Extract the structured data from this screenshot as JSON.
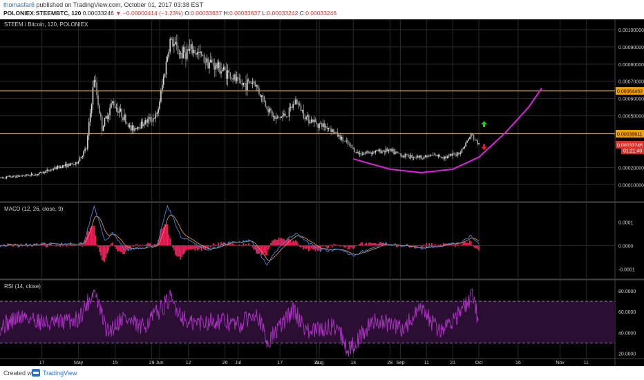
{
  "header": {
    "username": "thomasfar6",
    "published": "published on TradingView.com, October 01, 2017 03:38 EST",
    "symbol": "POLONIEX:STEEMBTC, 120",
    "last": "0.00033246",
    "change_arrow": "▼",
    "change": "−0.00000414 (−1.23%)",
    "ohlc": [
      {
        "label": "O:",
        "value": "0.00033637"
      },
      {
        "label": "H:",
        "value": "0.00033637"
      },
      {
        "label": "L:",
        "value": "0.00033242"
      },
      {
        "label": "C:",
        "value": "0.00033246"
      }
    ]
  },
  "footer": {
    "created": "Created with",
    "brand": "TradingView"
  },
  "colors": {
    "background": "#000000",
    "grid": "#2a2a2a",
    "price_line": "#f0a000",
    "curve": "#e020e0",
    "up_arrow": "#22cc22",
    "down_arrow": "#e02020",
    "candle": "#cfcfcf",
    "macd_line": "#3b82c4",
    "signal_line": "#e09050",
    "histogram": "#e8205a",
    "rsi_line": "#b030c8",
    "rsi_band": "#2a0f33"
  },
  "chart_data": [
    {
      "type": "candlestick",
      "title": "STEEM / Bitcoin, 120, POLONIEX",
      "yaxis": {
        "ylim": [
          5e-06,
          0.00106
        ],
        "ticks": [
          "0.00100000",
          "0.00090000",
          "0.00080000",
          "0.00070000",
          "0.00060000",
          "0.00050000",
          "0.00020000",
          "0.00010000"
        ]
      },
      "price_path": [
        [
          "2017-04-01",
          0.00014
        ],
        [
          "2017-04-15",
          0.00016
        ],
        [
          "2017-04-25",
          0.00021
        ],
        [
          "2017-04-30",
          0.00022
        ],
        [
          "2017-05-04",
          0.00031
        ],
        [
          "2017-05-07",
          0.00072
        ],
        [
          "2017-05-10",
          0.00043
        ],
        [
          "2017-05-14",
          0.00058
        ],
        [
          "2017-05-18",
          0.0005
        ],
        [
          "2017-05-21",
          0.00042
        ],
        [
          "2017-05-26",
          0.00046
        ],
        [
          "2017-05-31",
          0.0005
        ],
        [
          "2017-06-05",
          0.00094
        ],
        [
          "2017-06-09",
          0.00086
        ],
        [
          "2017-06-14",
          0.00088
        ],
        [
          "2017-06-19",
          0.00082
        ],
        [
          "2017-06-27",
          0.00075
        ],
        [
          "2017-07-02",
          0.00068
        ],
        [
          "2017-07-07",
          0.0007
        ],
        [
          "2017-07-11",
          0.00058
        ],
        [
          "2017-07-15",
          0.00048
        ],
        [
          "2017-07-20",
          0.00051
        ],
        [
          "2017-07-23",
          0.00059
        ],
        [
          "2017-07-27",
          0.00049
        ],
        [
          "2017-08-01",
          0.00045
        ],
        [
          "2017-08-05",
          0.00043
        ],
        [
          "2017-08-10",
          0.00036
        ],
        [
          "2017-08-16",
          0.00028
        ],
        [
          "2017-08-21",
          0.00029
        ],
        [
          "2017-08-27",
          0.0003
        ],
        [
          "2017-09-02",
          0.00027
        ],
        [
          "2017-09-09",
          0.00026
        ],
        [
          "2017-09-14",
          0.00027
        ],
        [
          "2017-09-19",
          0.00026
        ],
        [
          "2017-09-24",
          0.00029
        ],
        [
          "2017-09-28",
          0.00039
        ],
        [
          "2017-10-01",
          0.00033246
        ]
      ],
      "horizontal_lines": [
        {
          "value": 0.00064462,
          "label": "0.00064462"
        },
        {
          "value": 0.00039611,
          "label": "0.00039611"
        }
      ],
      "price_labels": [
        {
          "value": 0.00033246,
          "label": "0.00033246"
        },
        {
          "value": 0.0003,
          "label": "01:21:40"
        }
      ],
      "curve_points": [
        [
          "2017-08-14",
          0.00025
        ],
        [
          "2017-08-28",
          0.00019
        ],
        [
          "2017-09-09",
          0.00017
        ],
        [
          "2017-09-21",
          0.00019
        ],
        [
          "2017-10-01",
          0.00026
        ],
        [
          "2017-10-11",
          0.0004
        ],
        [
          "2017-10-20",
          0.00055
        ],
        [
          "2017-10-25",
          0.00066
        ]
      ],
      "arrows": [
        {
          "date": "2017-10-03",
          "value": 0.00045,
          "direction": "up"
        },
        {
          "date": "2017-10-03",
          "value": 0.00032,
          "direction": "down"
        }
      ]
    },
    {
      "type": "line",
      "title": "MACD (12, 26, close, 9)",
      "ylim": [
        -0.00014,
        0.00018
      ],
      "yaxis": {
        "ticks": [
          "0.0001",
          "0.0000",
          "-0.0001"
        ]
      },
      "series": [
        {
          "name": "MACD",
          "points": [
            [
              "2017-04-01",
              0.0
            ],
            [
              "2017-05-03",
              1e-05
            ],
            [
              "2017-05-07",
              0.00017
            ],
            [
              "2017-05-11",
              2e-05
            ],
            [
              "2017-05-14",
              5e-05
            ],
            [
              "2017-05-19",
              -2e-05
            ],
            [
              "2017-05-31",
              0.0
            ],
            [
              "2017-06-04",
              0.00017
            ],
            [
              "2017-06-09",
              4e-05
            ],
            [
              "2017-06-19",
              -2e-05
            ],
            [
              "2017-06-27",
              1e-05
            ],
            [
              "2017-07-06",
              2e-05
            ],
            [
              "2017-07-12",
              -8e-05
            ],
            [
              "2017-07-18",
              1e-05
            ],
            [
              "2017-07-23",
              5e-05
            ],
            [
              "2017-08-01",
              -2e-05
            ],
            [
              "2017-08-09",
              -2e-05
            ],
            [
              "2017-08-14",
              -4e-05
            ],
            [
              "2017-08-27",
              1e-05
            ],
            [
              "2017-09-09",
              -1e-05
            ],
            [
              "2017-09-24",
              1e-05
            ],
            [
              "2017-09-28",
              4e-05
            ],
            [
              "2017-10-01",
              1e-05
            ]
          ]
        }
      ]
    },
    {
      "type": "line",
      "title": "RSI (14, close)",
      "ylim": [
        15,
        90
      ],
      "yaxis": {
        "ticks": [
          "80.0000",
          "60.0000",
          "40.0000",
          "20.0000"
        ]
      },
      "bands": [
        70,
        30
      ],
      "series": [
        {
          "name": "RSI",
          "points": [
            [
              "2017-04-01",
              46
            ],
            [
              "2017-04-10",
              56
            ],
            [
              "2017-04-20",
              48
            ],
            [
              "2017-05-01",
              53
            ],
            [
              "2017-05-07",
              80
            ],
            [
              "2017-05-12",
              40
            ],
            [
              "2017-05-18",
              55
            ],
            [
              "2017-05-25",
              44
            ],
            [
              "2017-06-05",
              72
            ],
            [
              "2017-06-12",
              48
            ],
            [
              "2017-06-22",
              52
            ],
            [
              "2017-07-02",
              47
            ],
            [
              "2017-07-08",
              62
            ],
            [
              "2017-07-12",
              30
            ],
            [
              "2017-07-22",
              62
            ],
            [
              "2017-07-28",
              40
            ],
            [
              "2017-08-08",
              47
            ],
            [
              "2017-08-12",
              22
            ],
            [
              "2017-08-22",
              52
            ],
            [
              "2017-09-02",
              44
            ],
            [
              "2017-09-09",
              62
            ],
            [
              "2017-09-16",
              41
            ],
            [
              "2017-09-24",
              60
            ],
            [
              "2017-09-29",
              76
            ],
            [
              "2017-10-01",
              47
            ]
          ]
        }
      ]
    }
  ],
  "xaxis": {
    "ticks": [
      {
        "date": "2017-04-17",
        "label": "17"
      },
      {
        "date": "2017-05-01",
        "label": "May"
      },
      {
        "date": "2017-05-15",
        "label": "15"
      },
      {
        "date": "2017-05-29",
        "label": "29"
      },
      {
        "date": "2017-06-01",
        "label": "Jun"
      },
      {
        "date": "2017-06-12",
        "label": "12"
      },
      {
        "date": "2017-06-26",
        "label": "26"
      },
      {
        "date": "2017-07-01",
        "label": "Jul"
      },
      {
        "date": "2017-07-17",
        "label": "17"
      },
      {
        "date": "2017-07-31",
        "label": "31"
      },
      {
        "date": "2017-08-01",
        "label": "Aug"
      },
      {
        "date": "2017-08-14",
        "label": "14"
      },
      {
        "date": "2017-08-28",
        "label": "28"
      },
      {
        "date": "2017-09-01",
        "label": "Sep"
      },
      {
        "date": "2017-09-11",
        "label": "11"
      },
      {
        "date": "2017-09-21",
        "label": "21"
      },
      {
        "date": "2017-10-01",
        "label": "Oct"
      },
      {
        "date": "2017-10-16",
        "label": "16"
      },
      {
        "date": "2017-11-01",
        "label": "Nov"
      },
      {
        "date": "2017-11-11",
        "label": "11"
      }
    ]
  }
}
